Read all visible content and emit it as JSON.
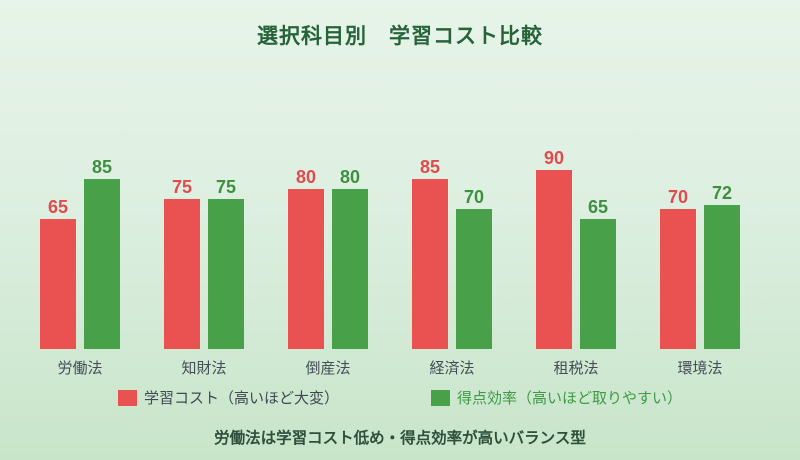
{
  "title": "選択科目別　学習コスト比較",
  "note": "労働法は学習コスト低め・得点効率が高いバランス型",
  "colors": {
    "background_top": "#e7f4e9",
    "background_bottom": "#c8e5ca",
    "title": "#27633a",
    "category_label": "#434e57",
    "note": "#2d4f3b"
  },
  "legend": {
    "cost_label": "学習コスト（高いほど大変）",
    "efficiency_label": "得点効率（高いほど取りやすい）"
  },
  "chart_data": {
    "type": "bar",
    "title": "選択科目別　学習コスト比較",
    "categories": [
      "労働法",
      "知財法",
      "倒産法",
      "経済法",
      "租税法",
      "環境法"
    ],
    "series": [
      {
        "name": "学習コスト（高いほど大変）",
        "color": "#ea5252",
        "value_label_color": "#e14b4d",
        "values": [
          65,
          75,
          80,
          85,
          90,
          70
        ]
      },
      {
        "name": "得点効率（高いほど取りやすい）",
        "color": "#48a049",
        "value_label_color": "#3e9041",
        "values": [
          85,
          75,
          80,
          70,
          65,
          72
        ]
      }
    ],
    "ylim": [
      0,
      100
    ],
    "grid": false,
    "axes_visible": false,
    "value_labels": true,
    "legend_position": "bottom"
  }
}
